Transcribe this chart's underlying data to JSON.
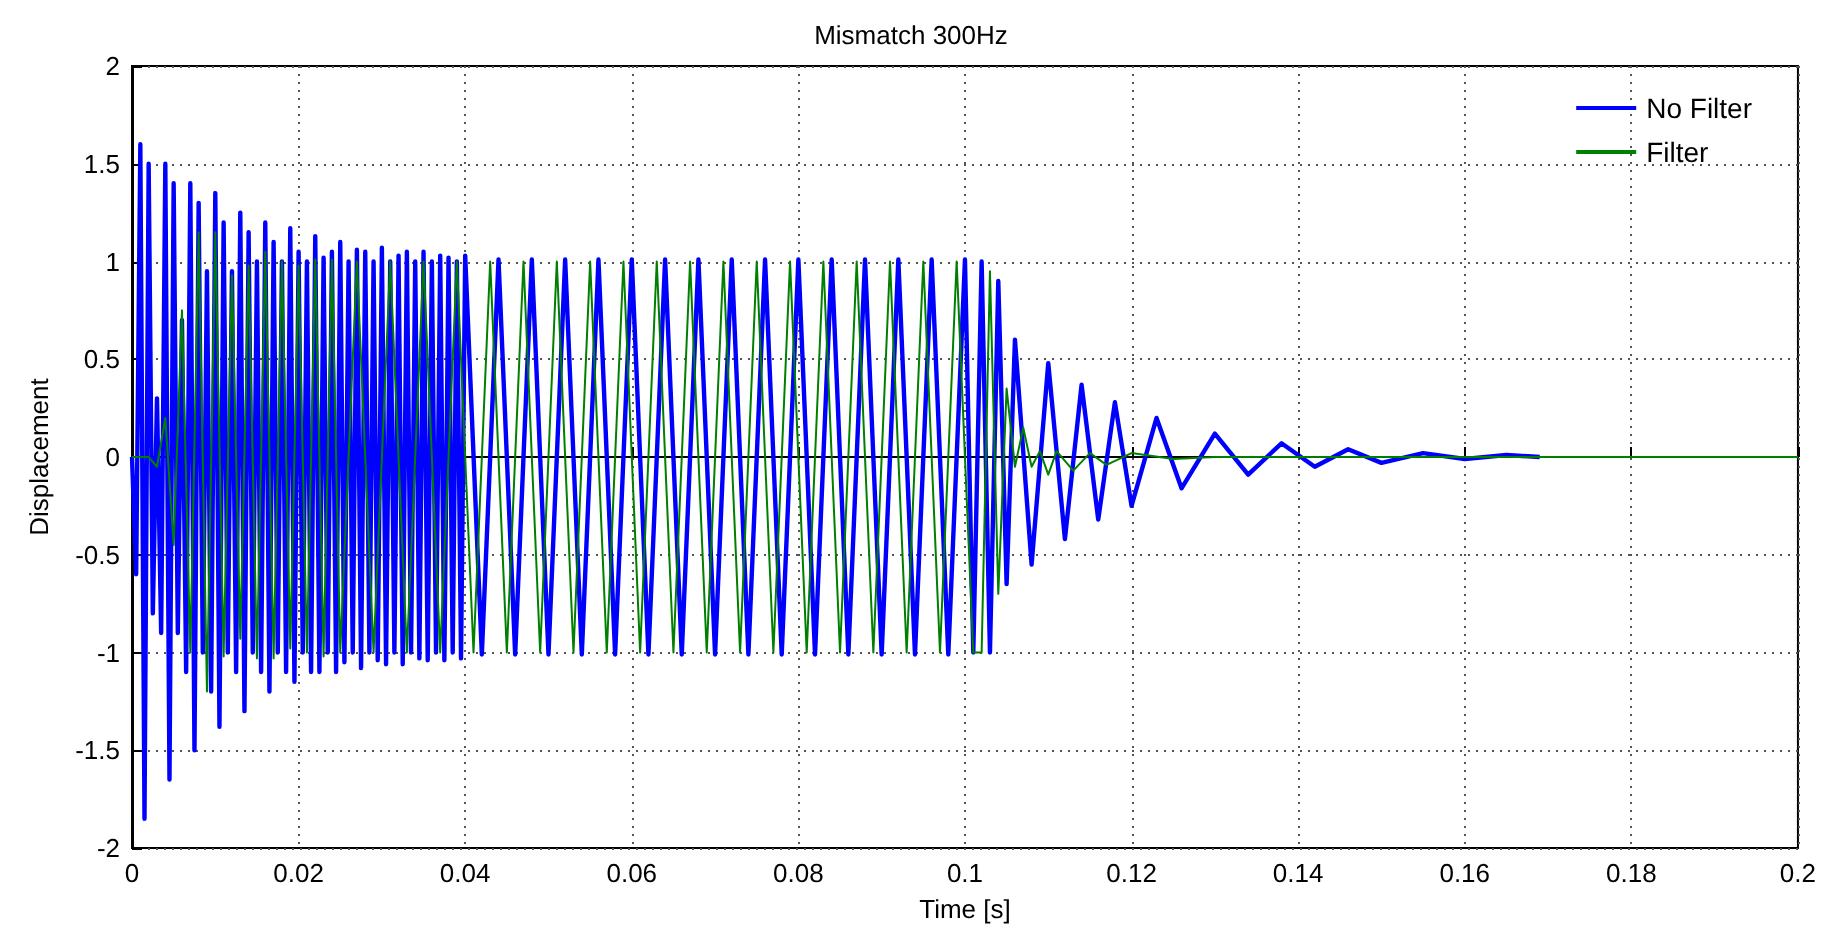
{
  "chart_data": {
    "type": "line",
    "title": "Mismatch 300Hz",
    "xlabel": "Time [s]",
    "ylabel": "Displacement",
    "xlim": [
      0,
      0.2
    ],
    "xticks": [
      0,
      0.02,
      0.04,
      0.06,
      0.08,
      0.1,
      0.12,
      0.14,
      0.16,
      0.18,
      0.2
    ],
    "ylim": [
      -2,
      2
    ],
    "yticks": [
      -2,
      -1.5,
      -1,
      -0.5,
      0,
      0.5,
      1,
      1.5,
      2
    ],
    "grid": true,
    "legend": "top right",
    "marker": "none",
    "line_style": "solid",
    "series": [
      {
        "name": "No Filter",
        "color": "#0000ff",
        "x": [
          0,
          0.0005,
          0.001,
          0.0015,
          0.002,
          0.0025,
          0.003,
          0.0035,
          0.004,
          0.0045,
          0.005,
          0.0055,
          0.006,
          0.0065,
          0.007,
          0.0075,
          0.008,
          0.0085,
          0.009,
          0.0095,
          0.01,
          0.0105,
          0.011,
          0.0115,
          0.012,
          0.0125,
          0.013,
          0.0135,
          0.014,
          0.0145,
          0.015,
          0.0155,
          0.016,
          0.0165,
          0.017,
          0.0175,
          0.018,
          0.0185,
          0.019,
          0.0195,
          0.02,
          0.0205,
          0.021,
          0.0215,
          0.022,
          0.0225,
          0.023,
          0.0235,
          0.024,
          0.0245,
          0.025,
          0.0255,
          0.026,
          0.0265,
          0.027,
          0.0275,
          0.028,
          0.0285,
          0.029,
          0.0295,
          0.03,
          0.0305,
          0.031,
          0.0315,
          0.032,
          0.0325,
          0.033,
          0.0335,
          0.034,
          0.0345,
          0.035,
          0.0355,
          0.036,
          0.0365,
          0.037,
          0.0375,
          0.038,
          0.0385,
          0.039,
          0.0395,
          0.04,
          0.042,
          0.044,
          0.046,
          0.048,
          0.05,
          0.052,
          0.054,
          0.056,
          0.058,
          0.06,
          0.062,
          0.064,
          0.066,
          0.068,
          0.07,
          0.072,
          0.074,
          0.076,
          0.078,
          0.08,
          0.082,
          0.084,
          0.086,
          0.088,
          0.09,
          0.092,
          0.094,
          0.096,
          0.098,
          0.1,
          0.101,
          0.102,
          0.103,
          0.104,
          0.105,
          0.106,
          0.108,
          0.11,
          0.112,
          0.114,
          0.116,
          0.118,
          0.12,
          0.123,
          0.126,
          0.13,
          0.134,
          0.138,
          0.142,
          0.146,
          0.15,
          0.155,
          0.16,
          0.165,
          0.169
        ],
        "values": [
          0,
          -0.6,
          1.6,
          -1.85,
          1.5,
          -0.8,
          0.3,
          -0.9,
          1.5,
          -1.65,
          1.4,
          -0.9,
          0.7,
          -1.1,
          1.4,
          -1.5,
          1.3,
          -1.0,
          0.95,
          -1.2,
          1.35,
          -1.38,
          1.2,
          -1.0,
          0.95,
          -1.1,
          1.25,
          -1.3,
          1.15,
          -1.0,
          1.0,
          -1.1,
          1.2,
          -1.2,
          1.1,
          -1.0,
          1.0,
          -1.1,
          1.17,
          -1.15,
          1.05,
          -1.0,
          1.0,
          -1.1,
          1.13,
          -1.1,
          1.02,
          -1.0,
          1.05,
          -1.1,
          1.1,
          -1.05,
          1.0,
          -1.0,
          1.06,
          -1.08,
          1.05,
          -1.0,
          1.0,
          -1.04,
          1.07,
          -1.06,
          1.0,
          -1.0,
          1.03,
          -1.06,
          1.05,
          -1.0,
          1.0,
          -1.03,
          1.05,
          -1.04,
          1.0,
          -1.0,
          1.03,
          -1.04,
          1.02,
          -1.0,
          1.0,
          -1.03,
          1.03,
          -1.01,
          1.01,
          -1.01,
          1.01,
          -1.01,
          1.01,
          -1.01,
          1.01,
          -1.01,
          1.01,
          -1.01,
          1.01,
          -1.01,
          1.01,
          -1.01,
          1.01,
          -1.01,
          1.01,
          -1.01,
          1.01,
          -1.01,
          1.01,
          -1.01,
          1.01,
          -1.01,
          1.01,
          -1.01,
          1.01,
          -1.01,
          1.01,
          -1,
          1,
          -1,
          0.9,
          -0.65,
          0.6,
          -0.55,
          0.48,
          -0.42,
          0.37,
          -0.32,
          0.28,
          -0.25,
          0.2,
          -0.16,
          0.12,
          -0.09,
          0.07,
          -0.05,
          0.04,
          -0.03,
          0.02,
          -0.01,
          0.01,
          0
        ]
      },
      {
        "name": "Filter",
        "color": "#007f00",
        "x": [
          0,
          0.001,
          0.002,
          0.003,
          0.004,
          0.005,
          0.006,
          0.007,
          0.008,
          0.009,
          0.01,
          0.011,
          0.012,
          0.013,
          0.014,
          0.015,
          0.016,
          0.017,
          0.018,
          0.019,
          0.02,
          0.021,
          0.022,
          0.023,
          0.024,
          0.025,
          0.027,
          0.029,
          0.031,
          0.033,
          0.035,
          0.037,
          0.039,
          0.041,
          0.043,
          0.045,
          0.047,
          0.049,
          0.051,
          0.053,
          0.055,
          0.057,
          0.059,
          0.061,
          0.063,
          0.065,
          0.067,
          0.069,
          0.071,
          0.073,
          0.075,
          0.077,
          0.079,
          0.081,
          0.083,
          0.085,
          0.087,
          0.089,
          0.091,
          0.093,
          0.095,
          0.097,
          0.099,
          0.101,
          0.102,
          0.103,
          0.104,
          0.105,
          0.106,
          0.107,
          0.108,
          0.109,
          0.11,
          0.111,
          0.113,
          0.115,
          0.117,
          0.12,
          0.125,
          0.13,
          0.2
        ],
        "values": [
          0,
          0,
          0,
          -0.05,
          0.2,
          -0.45,
          0.75,
          -1.0,
          1.15,
          -1.2,
          1.15,
          -1.02,
          0.93,
          -0.93,
          0.98,
          -1.03,
          1.05,
          -1.03,
          1.0,
          -0.98,
          0.98,
          -1.0,
          1.01,
          -1.02,
          1.01,
          -1.0,
          1,
          -1,
          1,
          -1,
          1,
          -1,
          1,
          -1,
          1,
          -1,
          1,
          -1,
          1,
          -1,
          1,
          -1,
          1,
          -1,
          1,
          -1,
          1,
          -1,
          1,
          -1,
          1,
          -1,
          1,
          -1,
          1,
          -1,
          1,
          -1,
          1,
          -1,
          1,
          -1,
          1,
          -1,
          -1,
          0.95,
          -0.7,
          0.35,
          -0.05,
          0.15,
          -0.05,
          0.03,
          -0.09,
          0.03,
          -0.07,
          0.02,
          -0.04,
          0.02,
          -0.01,
          0,
          0
        ]
      }
    ]
  }
}
